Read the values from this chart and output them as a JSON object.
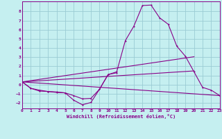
{
  "xlabel": "Windchill (Refroidissement éolien,°C)",
  "bg_color": "#c5eff0",
  "grid_color": "#9accd4",
  "line_color": "#880088",
  "markersize": 2.0,
  "linewidth": 0.8,
  "xlim": [
    0,
    23
  ],
  "ylim": [
    -2.6,
    9.1
  ],
  "xticks": [
    0,
    1,
    2,
    3,
    4,
    5,
    6,
    7,
    8,
    9,
    10,
    11,
    12,
    13,
    14,
    15,
    16,
    17,
    18,
    19,
    20,
    21,
    22,
    23
  ],
  "yticks": [
    -2,
    -1,
    0,
    1,
    2,
    3,
    4,
    5,
    6,
    7,
    8
  ],
  "curve1_x": [
    0,
    1,
    2,
    3,
    4,
    5,
    6,
    7,
    8,
    9,
    10,
    11,
    12,
    13,
    14,
    15,
    16,
    17,
    18,
    19,
    20,
    21,
    22,
    23
  ],
  "curve1_y": [
    0.3,
    -0.4,
    -0.7,
    -0.75,
    -0.85,
    -0.9,
    -1.7,
    -2.2,
    -1.95,
    -0.5,
    1.1,
    1.4,
    4.8,
    6.4,
    8.65,
    8.7,
    7.3,
    6.6,
    4.2,
    3.1,
    1.4,
    -0.3,
    -0.6,
    -1.2
  ],
  "curve2_x": [
    0,
    1,
    2,
    3,
    4,
    5,
    6,
    7,
    8,
    9,
    10,
    11
  ],
  "curve2_y": [
    0.3,
    -0.4,
    -0.6,
    -0.75,
    -0.8,
    -0.9,
    -1.2,
    -1.55,
    -1.5,
    -0.5,
    1.1,
    1.3
  ],
  "line1_x": [
    0,
    23
  ],
  "line1_y": [
    0.3,
    -1.2
  ],
  "line2_x": [
    0,
    20
  ],
  "line2_y": [
    0.3,
    1.5
  ],
  "line3_x": [
    0,
    20
  ],
  "line3_y": [
    0.3,
    3.05
  ]
}
